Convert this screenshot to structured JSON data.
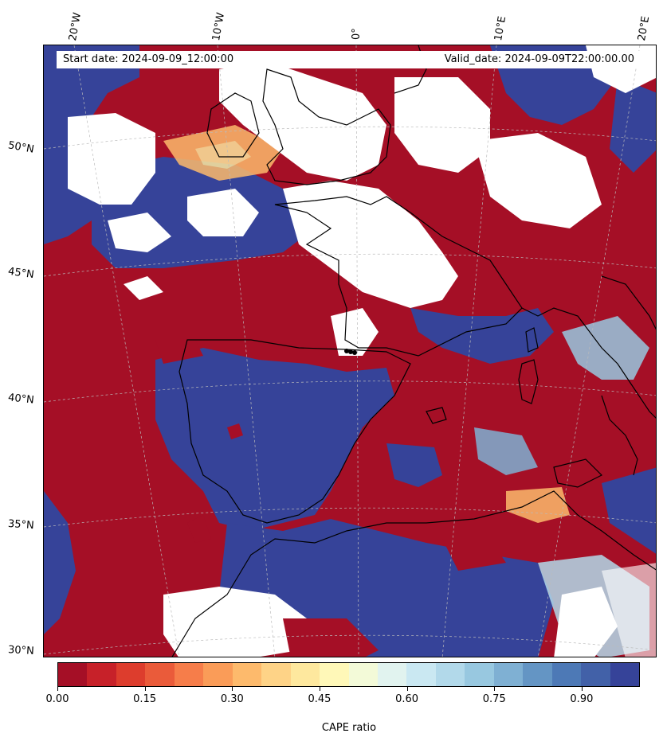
{
  "header": {
    "start_label": "Start date: 2024-09-09_12:00:00",
    "valid_label": "Valid_date: 2024-09-09T22:00:00.00"
  },
  "longitude_labels": [
    "20°W",
    "10°W",
    "0°",
    "10°E",
    "20°E"
  ],
  "latitude_labels": [
    "50°N",
    "45°N",
    "40°N",
    "35°N",
    "30°N"
  ],
  "colorbar": {
    "title": "CAPE ratio",
    "tick_labels": [
      "0.00",
      "0.15",
      "0.30",
      "0.45",
      "0.60",
      "0.75",
      "0.90"
    ],
    "colors": [
      "#a50f26",
      "#c72129",
      "#dd3d2d",
      "#ea5b3a",
      "#f67d4a",
      "#fa9c58",
      "#fdba6c",
      "#fed387",
      "#fee89e",
      "#fff8b8",
      "#f3fad8",
      "#e1f3ef",
      "#cae8f2",
      "#b2d9ea",
      "#98c8e0",
      "#7fb0d3",
      "#6495c4",
      "#4d79b6",
      "#4261a8",
      "#364399"
    ]
  },
  "map": {
    "colors": {
      "high_ratio": "#364399",
      "low_ratio": "#a50f26",
      "no_data": "#ffffff",
      "coastline": "#000000",
      "gridline": "#bbbbbb"
    }
  }
}
